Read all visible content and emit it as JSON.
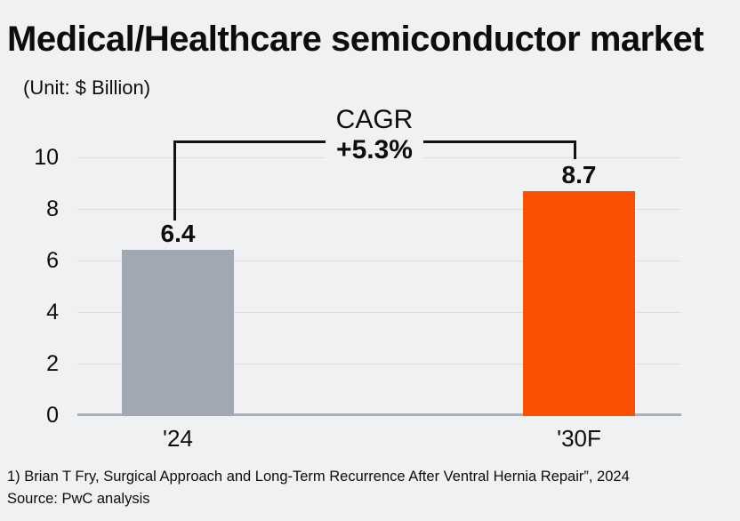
{
  "header": {
    "title": "Medical/Healthcare semiconductor market",
    "unit_label": "(Unit: $ Billion)"
  },
  "annotation": {
    "cagr_label": "CAGR",
    "cagr_value": "+5.3%"
  },
  "chart_data": {
    "type": "bar",
    "title": "Medical/Healthcare semiconductor market",
    "unit": "$ Billion",
    "categories": [
      "'24",
      "'30F"
    ],
    "values": [
      6.4,
      8.7
    ],
    "value_labels": [
      "6.4",
      "8.7"
    ],
    "series_colors": [
      "#a2a8b3",
      "#fb4f04"
    ],
    "cagr": "+5.3%",
    "xlabel": "",
    "ylabel": "",
    "ylim": [
      0,
      10
    ],
    "yticks": [
      0,
      2,
      4,
      6,
      8,
      10
    ],
    "grid": true,
    "legend_position": "none"
  },
  "footer": {
    "footnote": "1) Brian T Fry, Surgical Approach and Long-Term Recurrence After Ventral Hernia Repair”, 2024",
    "source": "Source: PwC analysis"
  },
  "colors": {
    "background": "#f0f1f3",
    "bar_current": "#a2a8b3",
    "bar_forecast": "#fb4f04",
    "gridline": "#dcdee0",
    "axis_line": "#a9afbb",
    "text": "#0d0d0d"
  }
}
